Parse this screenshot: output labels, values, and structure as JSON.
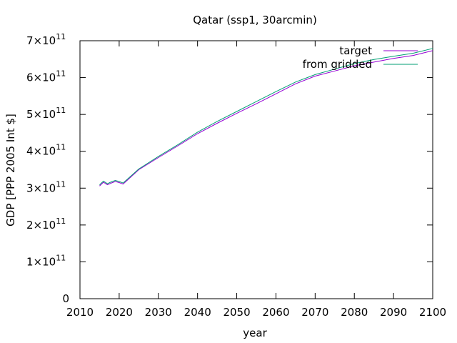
{
  "chart_data": {
    "type": "line",
    "title": "Qatar (ssp1, 30arcmin)",
    "xlabel": "year",
    "ylabel": "GDP [PPP 2005 Int $]",
    "xlim": [
      2010,
      2100
    ],
    "ylim": [
      0,
      700000000000.0
    ],
    "xticks": [
      2010,
      2020,
      2030,
      2040,
      2050,
      2060,
      2070,
      2080,
      2090,
      2100
    ],
    "yticks": [
      {
        "value": 0,
        "mantissa": "0",
        "exp": ""
      },
      {
        "value": 100000000000.0,
        "mantissa": "1×10",
        "exp": "11"
      },
      {
        "value": 200000000000.0,
        "mantissa": "2×10",
        "exp": "11"
      },
      {
        "value": 300000000000.0,
        "mantissa": "3×10",
        "exp": "11"
      },
      {
        "value": 400000000000.0,
        "mantissa": "4×10",
        "exp": "11"
      },
      {
        "value": 500000000000.0,
        "mantissa": "5×10",
        "exp": "11"
      },
      {
        "value": 600000000000.0,
        "mantissa": "6×10",
        "exp": "11"
      },
      {
        "value": 700000000000.0,
        "mantissa": "7×10",
        "exp": "11"
      }
    ],
    "legend_position": "top-right",
    "grid": false,
    "series": [
      {
        "name": "target",
        "color": "#9400d3",
        "x": [
          2015,
          2016,
          2017,
          2018,
          2019,
          2020,
          2021,
          2025,
          2030,
          2035,
          2040,
          2045,
          2050,
          2055,
          2060,
          2065,
          2070,
          2075,
          2080,
          2085,
          2090,
          2095,
          2100
        ],
        "y": [
          306000000000.0,
          316000000000.0,
          309000000000.0,
          314000000000.0,
          318000000000.0,
          315000000000.0,
          311000000000.0,
          350000000000.0,
          383000000000.0,
          415000000000.0,
          448000000000.0,
          476000000000.0,
          503000000000.0,
          529000000000.0,
          556000000000.0,
          583000000000.0,
          604000000000.0,
          618000000000.0,
          632000000000.0,
          642000000000.0,
          652000000000.0,
          660000000000.0,
          673000000000.0
        ]
      },
      {
        "name": "from gridded",
        "color": "#009e73",
        "x": [
          2015,
          2016,
          2017,
          2018,
          2019,
          2020,
          2021,
          2025,
          2030,
          2035,
          2040,
          2045,
          2050,
          2055,
          2060,
          2065,
          2070,
          2075,
          2080,
          2085,
          2090,
          2095,
          2100
        ],
        "y": [
          309000000000.0,
          319000000000.0,
          312000000000.0,
          317000000000.0,
          321000000000.0,
          318000000000.0,
          314000000000.0,
          352000000000.0,
          386000000000.0,
          418000000000.0,
          452000000000.0,
          481000000000.0,
          508000000000.0,
          535000000000.0,
          562000000000.0,
          588000000000.0,
          608000000000.0,
          623000000000.0,
          638000000000.0,
          649000000000.0,
          658000000000.0,
          666000000000.0,
          679000000000.0
        ]
      }
    ]
  }
}
